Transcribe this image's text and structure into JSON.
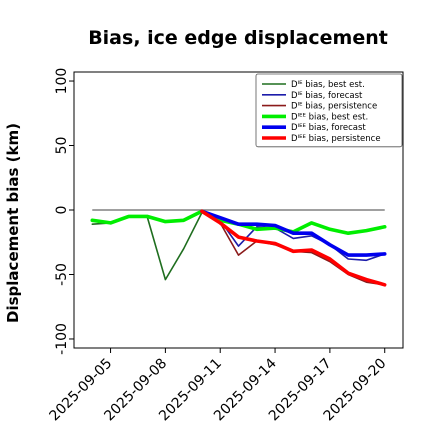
{
  "chart_data": {
    "type": "line",
    "title": "Bias, ice edge displacement",
    "xlabel": "",
    "ylabel": "Displacement bias (km)",
    "ylim": [
      -107,
      107
    ],
    "xlim": [
      "2025-09-03",
      "2025-09-21"
    ],
    "xticks": [
      "2025-09-05",
      "2025-09-08",
      "2025-09-11",
      "2025-09-14",
      "2025-09-17",
      "2025-09-20"
    ],
    "highlighted_xtick": "2025-09-11",
    "highlight_color": "#228B22",
    "yticks": [
      100,
      50,
      0,
      -50,
      -100
    ],
    "ytick_labels": [
      "100",
      "50",
      "0",
      "-50",
      "-100"
    ],
    "zero_line": true,
    "zero_line_color": "#808080",
    "grid": false,
    "legend_position": "top-right",
    "series": [
      {
        "name": "Dᴵᴱ bias, best est.",
        "color": "#1f6e1f",
        "width": 1.6,
        "x": [
          "2025-09-04",
          "2025-09-05",
          "2025-09-06",
          "2025-09-07",
          "2025-09-08",
          "2025-09-09",
          "2025-09-10",
          "2025-09-11"
        ],
        "y": [
          -11,
          -10,
          -5,
          -5,
          -54,
          -30,
          -2,
          -8
        ]
      },
      {
        "name": "Dᴵᴱ bias, forecast",
        "color": "#1c1caa",
        "width": 1.6,
        "x": [
          "2025-09-10",
          "2025-09-11",
          "2025-09-12",
          "2025-09-13",
          "2025-09-14",
          "2025-09-15",
          "2025-09-16",
          "2025-09-17",
          "2025-09-18",
          "2025-09-19",
          "2025-09-20"
        ],
        "y": [
          -1,
          -8,
          -28,
          -13,
          -14,
          -22,
          -20,
          -27,
          -38,
          -39,
          -34
        ]
      },
      {
        "name": "Dᴵᴱ bias, persistence",
        "color": "#8b1a1a",
        "width": 1.6,
        "x": [
          "2025-09-10",
          "2025-09-11",
          "2025-09-12",
          "2025-09-13",
          "2025-09-14",
          "2025-09-15",
          "2025-09-16",
          "2025-09-17",
          "2025-09-18",
          "2025-09-19",
          "2025-09-20"
        ],
        "y": [
          -1,
          -10,
          -35,
          -24,
          -27,
          -32,
          -33,
          -40,
          -50,
          -56,
          -58
        ]
      },
      {
        "name": "Dᴵᴱᴱ bias, best est.",
        "color": "#00ee00",
        "width": 3.6,
        "x": [
          "2025-09-04",
          "2025-09-05",
          "2025-09-06",
          "2025-09-07",
          "2025-09-08",
          "2025-09-09",
          "2025-09-10",
          "2025-09-11",
          "2025-09-12",
          "2025-09-13",
          "2025-09-14",
          "2025-09-15",
          "2025-09-16",
          "2025-09-17",
          "2025-09-18",
          "2025-09-19",
          "2025-09-20"
        ],
        "y": [
          -8,
          -10,
          -5,
          -5,
          -9,
          -8,
          -1,
          -8,
          -11,
          -15,
          -14,
          -17,
          -10,
          -15,
          -18,
          -16,
          -13
        ]
      },
      {
        "name": "Dᴵᴱᴱ bias, forecast",
        "color": "#0000ee",
        "width": 3.6,
        "x": [
          "2025-09-10",
          "2025-09-11",
          "2025-09-12",
          "2025-09-13",
          "2025-09-14",
          "2025-09-15",
          "2025-09-16",
          "2025-09-17",
          "2025-09-18",
          "2025-09-19",
          "2025-09-20"
        ],
        "y": [
          -1,
          -6,
          -11,
          -11,
          -12,
          -18,
          -18,
          -27,
          -35,
          -35,
          -34
        ]
      },
      {
        "name": "Dᴵᴱᴱ bias, persistence",
        "color": "#ff0000",
        "width": 3.6,
        "x": [
          "2025-09-10",
          "2025-09-11",
          "2025-09-12",
          "2025-09-13",
          "2025-09-14",
          "2025-09-15",
          "2025-09-16",
          "2025-09-17",
          "2025-09-18",
          "2025-09-19",
          "2025-09-20"
        ],
        "y": [
          -1,
          -10,
          -21,
          -24,
          -26,
          -32,
          -31,
          -38,
          -49,
          -54,
          -58
        ]
      }
    ]
  }
}
